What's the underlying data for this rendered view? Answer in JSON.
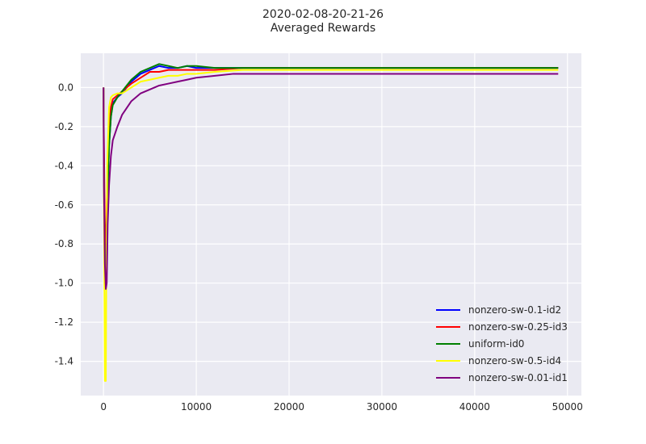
{
  "chart_data": {
    "type": "line",
    "title": "2020-02-08-20-21-26",
    "subtitle": "Averaged Rewards",
    "xlabel": "",
    "ylabel": "",
    "xlim": [
      -2450,
      51500
    ],
    "ylim": [
      -1.575,
      0.175
    ],
    "x_ticks": [
      0,
      10000,
      20000,
      30000,
      40000,
      50000
    ],
    "y_ticks": [
      -1.4,
      -1.2,
      -1.0,
      -0.8,
      -0.6,
      -0.4,
      -0.2,
      0.0
    ],
    "grid": true,
    "legend_position": "lower-right",
    "background": "#eaeaf2",
    "series": [
      {
        "name": "nonzero-sw-0.1-id2",
        "color": "#0000ff",
        "points": [
          [
            0,
            0.0
          ],
          [
            50,
            -0.4
          ],
          [
            150,
            -0.9
          ],
          [
            250,
            -0.95
          ],
          [
            400,
            -0.6
          ],
          [
            600,
            -0.3
          ],
          [
            800,
            -0.15
          ],
          [
            1000,
            -0.08
          ],
          [
            1500,
            -0.05
          ],
          [
            2000,
            -0.03
          ],
          [
            3000,
            0.03
          ],
          [
            4000,
            0.07
          ],
          [
            5000,
            0.09
          ],
          [
            6000,
            0.11
          ],
          [
            7000,
            0.1
          ],
          [
            8000,
            0.1
          ],
          [
            9000,
            0.11
          ],
          [
            10000,
            0.1
          ],
          [
            12000,
            0.1
          ],
          [
            15000,
            0.1
          ],
          [
            20000,
            0.1
          ],
          [
            25000,
            0.1
          ],
          [
            30000,
            0.1
          ],
          [
            35000,
            0.1
          ],
          [
            40000,
            0.1
          ],
          [
            45000,
            0.1
          ],
          [
            49000,
            0.1
          ]
        ]
      },
      {
        "name": "nonzero-sw-0.25-id3",
        "color": "#ff0000",
        "points": [
          [
            0,
            0.0
          ],
          [
            50,
            -0.3
          ],
          [
            150,
            -0.75
          ],
          [
            250,
            -0.85
          ],
          [
            400,
            -0.5
          ],
          [
            600,
            -0.2
          ],
          [
            800,
            -0.1
          ],
          [
            1000,
            -0.06
          ],
          [
            1500,
            -0.04
          ],
          [
            2000,
            -0.02
          ],
          [
            3000,
            0.02
          ],
          [
            4000,
            0.05
          ],
          [
            5000,
            0.08
          ],
          [
            6000,
            0.08
          ],
          [
            7000,
            0.09
          ],
          [
            8000,
            0.09
          ],
          [
            9000,
            0.09
          ],
          [
            10000,
            0.09
          ],
          [
            12000,
            0.09
          ],
          [
            15000,
            0.1
          ],
          [
            20000,
            0.1
          ],
          [
            25000,
            0.1
          ],
          [
            30000,
            0.1
          ],
          [
            35000,
            0.1
          ],
          [
            40000,
            0.1
          ],
          [
            45000,
            0.1
          ],
          [
            49000,
            0.1
          ]
        ]
      },
      {
        "name": "uniform-id0",
        "color": "#008000",
        "points": [
          [
            0,
            0.0
          ],
          [
            50,
            -0.5
          ],
          [
            150,
            -0.95
          ],
          [
            250,
            -1.0
          ],
          [
            400,
            -0.6
          ],
          [
            600,
            -0.3
          ],
          [
            800,
            -0.15
          ],
          [
            1000,
            -0.09
          ],
          [
            1500,
            -0.05
          ],
          [
            2000,
            -0.02
          ],
          [
            3000,
            0.04
          ],
          [
            4000,
            0.08
          ],
          [
            5000,
            0.1
          ],
          [
            6000,
            0.12
          ],
          [
            7000,
            0.11
          ],
          [
            8000,
            0.1
          ],
          [
            9000,
            0.11
          ],
          [
            10000,
            0.11
          ],
          [
            12000,
            0.1
          ],
          [
            15000,
            0.1
          ],
          [
            20000,
            0.1
          ],
          [
            25000,
            0.1
          ],
          [
            30000,
            0.1
          ],
          [
            35000,
            0.1
          ],
          [
            40000,
            0.1
          ],
          [
            45000,
            0.1
          ],
          [
            49000,
            0.1
          ]
        ]
      },
      {
        "name": "nonzero-sw-0.5-id4",
        "color": "#ffff00",
        "points": [
          [
            0,
            0.0
          ],
          [
            50,
            -0.6
          ],
          [
            150,
            -1.5
          ],
          [
            250,
            -1.5
          ],
          [
            300,
            -1.0
          ],
          [
            400,
            -0.4
          ],
          [
            600,
            -0.1
          ],
          [
            800,
            -0.05
          ],
          [
            1000,
            -0.04
          ],
          [
            1500,
            -0.03
          ],
          [
            2000,
            -0.03
          ],
          [
            3000,
            0.0
          ],
          [
            4000,
            0.03
          ],
          [
            5000,
            0.04
          ],
          [
            6000,
            0.05
          ],
          [
            7000,
            0.06
          ],
          [
            8000,
            0.06
          ],
          [
            9000,
            0.07
          ],
          [
            10000,
            0.07
          ],
          [
            12000,
            0.08
          ],
          [
            15000,
            0.09
          ],
          [
            20000,
            0.09
          ],
          [
            25000,
            0.09
          ],
          [
            30000,
            0.09
          ],
          [
            35000,
            0.09
          ],
          [
            40000,
            0.09
          ],
          [
            45000,
            0.09
          ],
          [
            49000,
            0.09
          ]
        ]
      },
      {
        "name": "nonzero-sw-0.01-id1",
        "color": "#800080",
        "points": [
          [
            0,
            0.0
          ],
          [
            50,
            -0.5
          ],
          [
            150,
            -0.9
          ],
          [
            250,
            -1.03
          ],
          [
            350,
            -1.0
          ],
          [
            450,
            -0.7
          ],
          [
            600,
            -0.5
          ],
          [
            800,
            -0.35
          ],
          [
            1000,
            -0.27
          ],
          [
            1500,
            -0.2
          ],
          [
            2000,
            -0.14
          ],
          [
            3000,
            -0.07
          ],
          [
            4000,
            -0.03
          ],
          [
            5000,
            -0.01
          ],
          [
            6000,
            0.01
          ],
          [
            7000,
            0.02
          ],
          [
            8000,
            0.03
          ],
          [
            9000,
            0.04
          ],
          [
            10000,
            0.05
          ],
          [
            12000,
            0.06
          ],
          [
            14000,
            0.07
          ],
          [
            15000,
            0.07
          ],
          [
            20000,
            0.07
          ],
          [
            25000,
            0.07
          ],
          [
            30000,
            0.07
          ],
          [
            35000,
            0.07
          ],
          [
            40000,
            0.07
          ],
          [
            45000,
            0.07
          ],
          [
            49000,
            0.07
          ]
        ]
      }
    ]
  }
}
